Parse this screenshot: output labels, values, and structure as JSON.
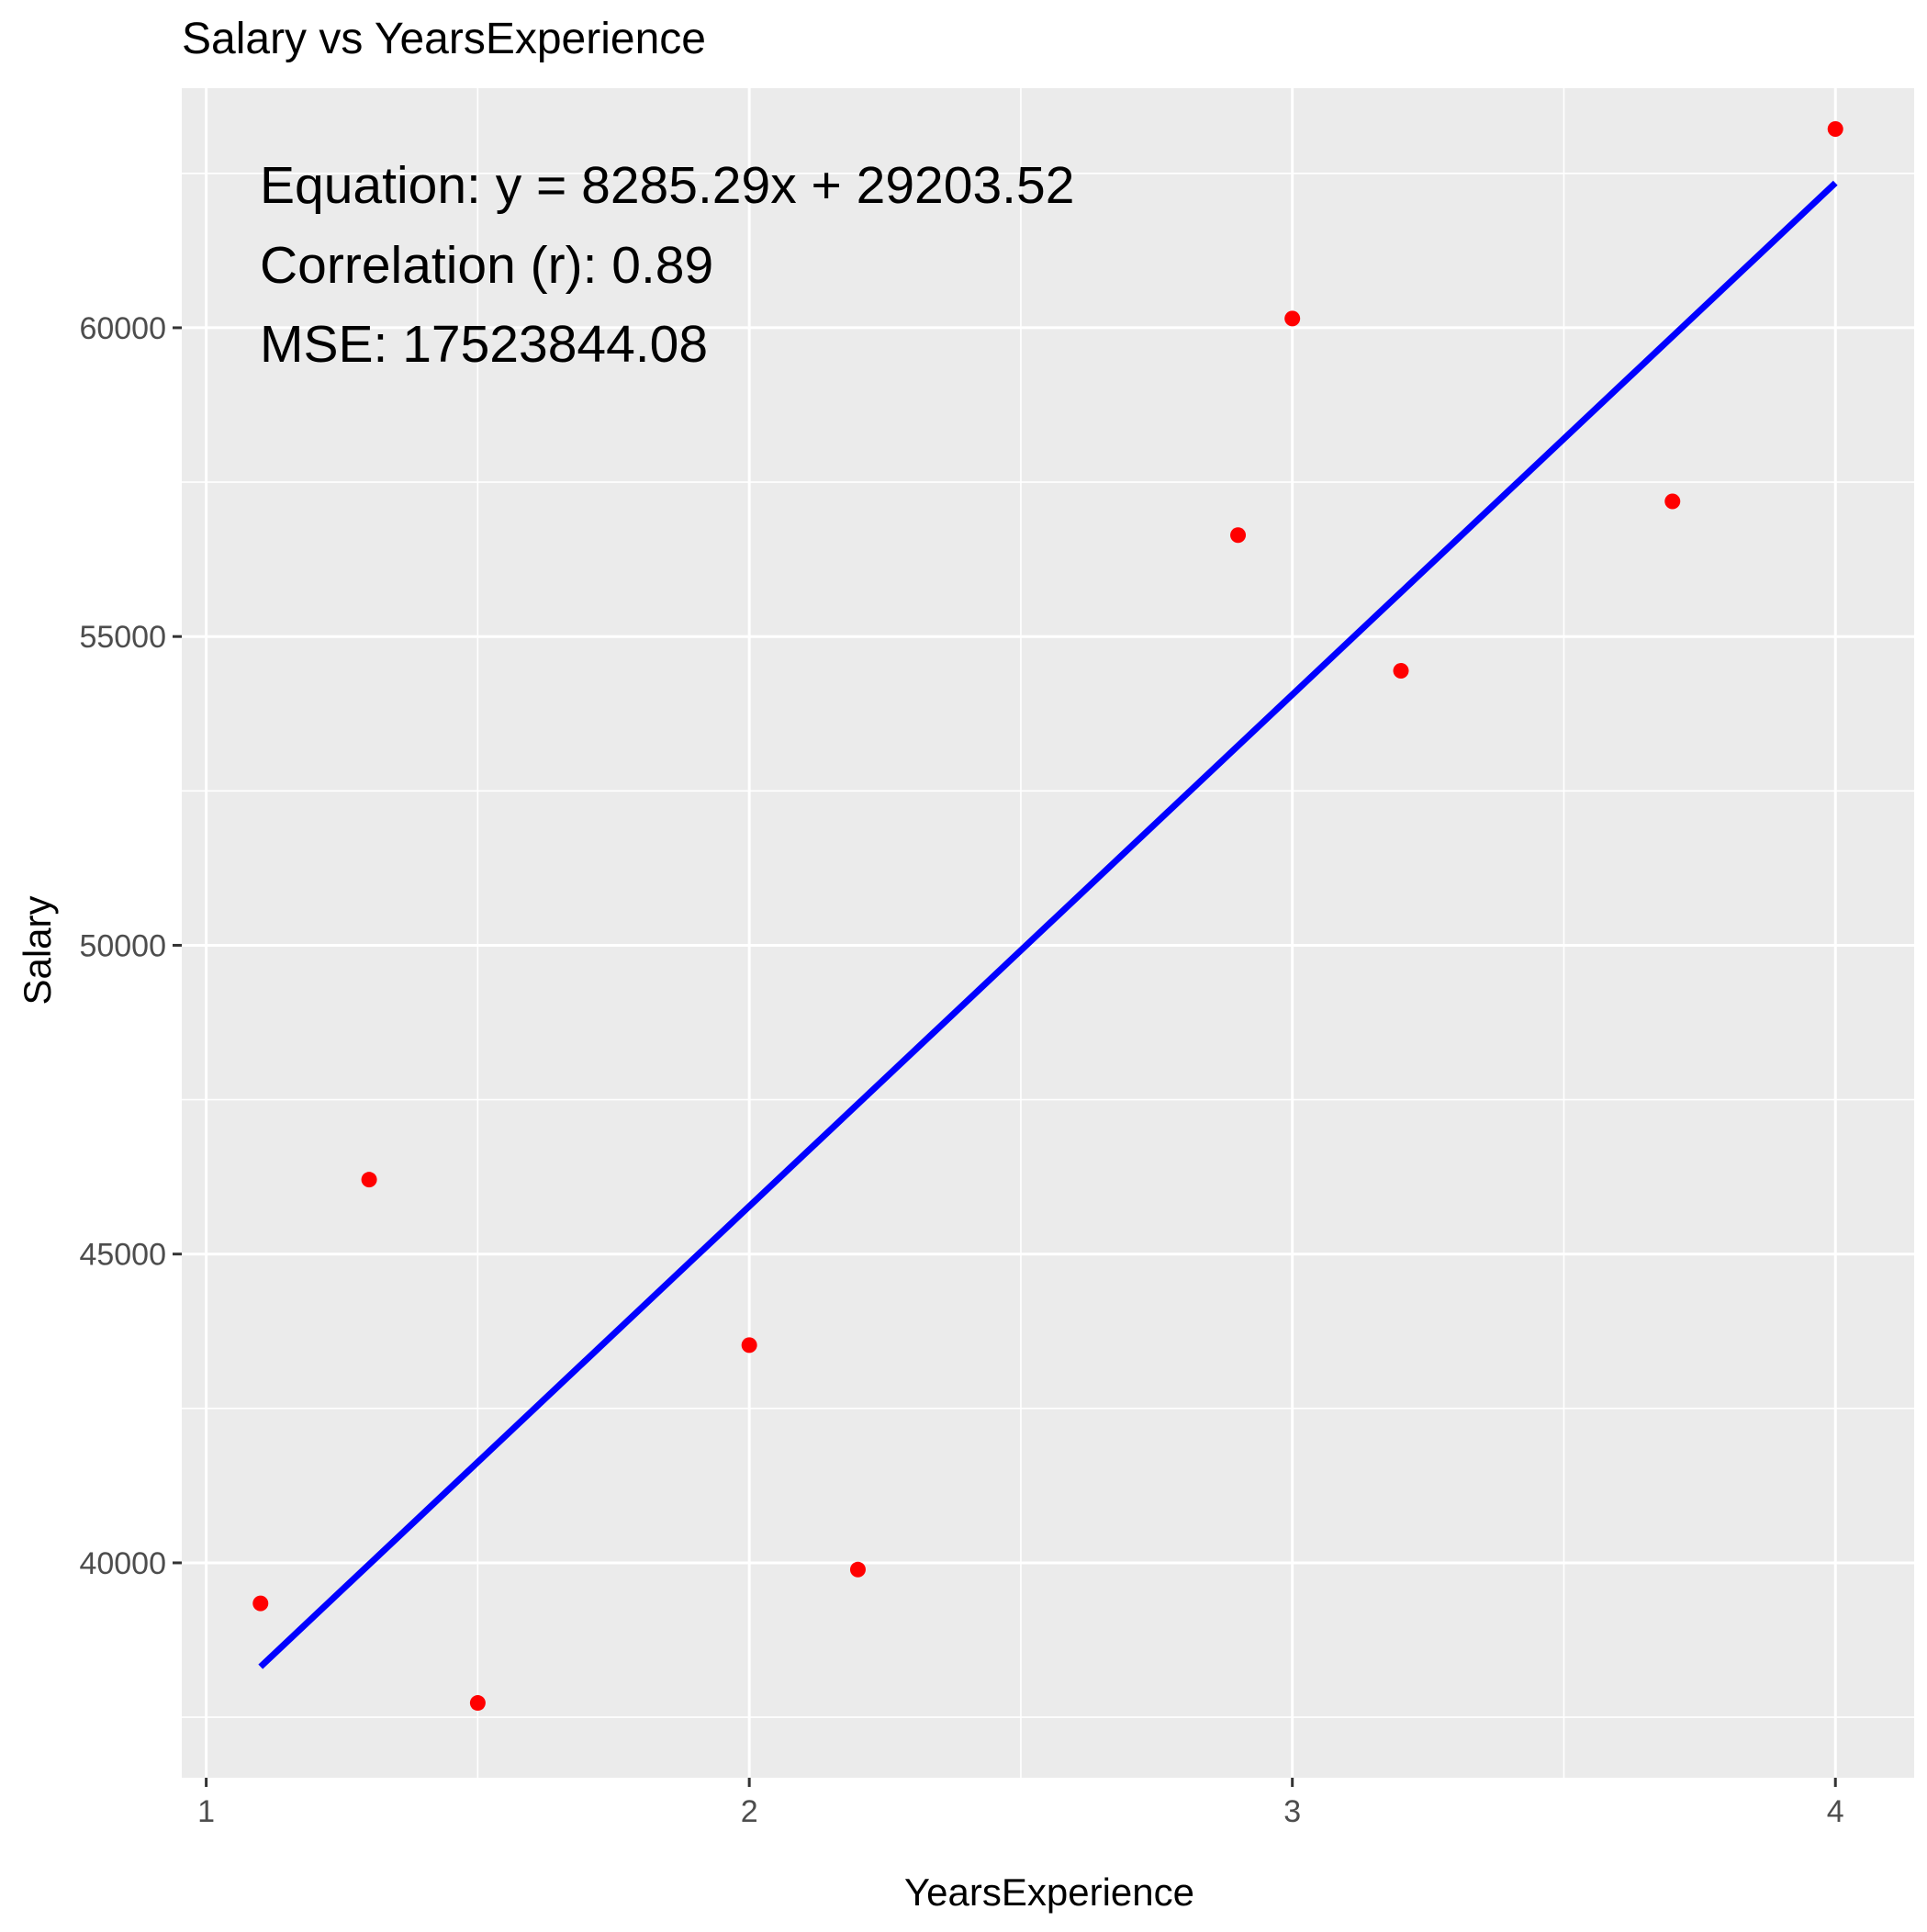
{
  "chart_data": {
    "type": "scatter",
    "title": "Salary vs YearsExperience",
    "xlabel": "YearsExperience",
    "ylabel": "Salary",
    "x_ticks": [
      1,
      2,
      3,
      4
    ],
    "y_ticks": [
      40000,
      45000,
      50000,
      55000,
      60000
    ],
    "xlim": [
      0.955,
      4.145
    ],
    "ylim": [
      36520,
      63880
    ],
    "grid": true,
    "panel_background": "#EBEBEB",
    "grid_color": "#FFFFFF",
    "points": {
      "color": "#FF0000",
      "x": [
        1.1,
        1.3,
        1.5,
        2.0,
        2.2,
        2.9,
        3.0,
        3.2,
        3.7,
        4.0
      ],
      "y": [
        39343,
        46205,
        37731,
        43525,
        39891,
        56642,
        60150,
        54445,
        57189,
        63218
      ]
    },
    "regression_line": {
      "color": "#0000FF",
      "slope": 8285.29,
      "intercept": 29203.52,
      "x_range": [
        1.1,
        4.0
      ]
    },
    "annotations": [
      "Equation: y = 8285.29x + 29203.52",
      "Correlation (r): 0.89",
      "MSE: 17523844.08"
    ]
  }
}
